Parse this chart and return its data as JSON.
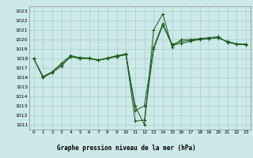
{
  "title": "Graphe pression niveau de la mer (hPa)",
  "bg_color": "#cce8e8",
  "grid_color": "#aacccc",
  "line_color": "#1a5c1a",
  "xlim": [
    -0.5,
    23.5
  ],
  "ylim": [
    1010.5,
    1023.5
  ],
  "yticks": [
    1011,
    1012,
    1013,
    1014,
    1015,
    1016,
    1017,
    1018,
    1019,
    1020,
    1021,
    1022,
    1023
  ],
  "xticks": [
    0,
    1,
    2,
    3,
    4,
    5,
    6,
    7,
    8,
    9,
    10,
    11,
    12,
    13,
    14,
    15,
    16,
    17,
    18,
    19,
    20,
    21,
    22,
    23
  ],
  "series": [
    {
      "x": [
        0,
        1,
        2,
        3,
        4,
        5,
        6,
        7,
        8,
        9,
        10,
        11,
        12,
        13,
        14,
        15,
        16,
        17,
        18,
        19,
        20,
        21,
        22,
        23
      ],
      "y": [
        1018.0,
        1016.0,
        1016.5,
        1017.2,
        1018.2,
        1018.0,
        1018.0,
        1017.8,
        1018.0,
        1018.2,
        1018.4,
        1013.0,
        1011.0,
        1021.0,
        1022.7,
        1019.2,
        1020.0,
        1020.0,
        1020.1,
        1020.2,
        1020.3,
        1019.7,
        1019.5,
        1019.5
      ]
    },
    {
      "x": [
        0,
        1,
        2,
        3,
        4,
        5,
        6,
        7,
        8,
        9,
        10,
        11,
        12,
        13,
        14,
        15,
        16,
        17,
        18,
        19,
        20,
        21,
        22,
        23
      ],
      "y": [
        1018.0,
        1016.1,
        1016.6,
        1017.5,
        1018.3,
        1018.1,
        1018.05,
        1017.85,
        1018.05,
        1018.3,
        1018.5,
        1012.5,
        1013.0,
        1019.2,
        1021.7,
        1019.5,
        1019.8,
        1019.9,
        1020.05,
        1020.1,
        1020.15,
        1019.8,
        1019.55,
        1019.5
      ]
    },
    {
      "x": [
        0,
        1,
        2,
        3,
        4,
        5,
        6,
        7,
        8,
        9,
        10,
        11,
        12,
        13,
        14,
        15,
        16,
        17,
        18,
        19,
        20,
        21,
        22,
        23
      ],
      "y": [
        1018.0,
        1016.0,
        1016.5,
        1017.3,
        1018.2,
        1018.0,
        1018.0,
        1017.8,
        1018.0,
        1018.2,
        1018.4,
        1011.4,
        1011.5,
        1019.0,
        1021.5,
        1019.4,
        1019.6,
        1019.8,
        1020.0,
        1020.1,
        1020.2,
        1019.75,
        1019.5,
        1019.45
      ]
    }
  ]
}
